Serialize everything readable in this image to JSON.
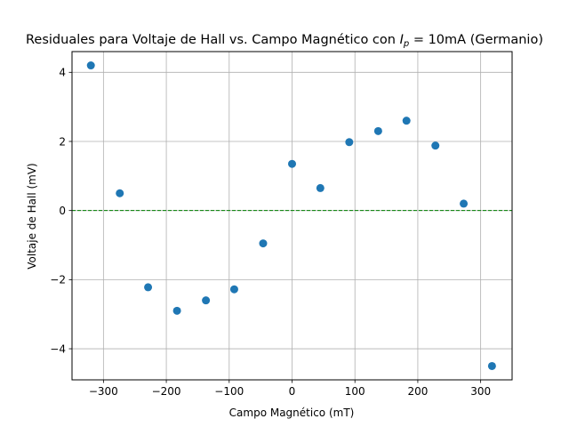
{
  "chart_data": {
    "type": "scatter",
    "title": "Residuales para Voltaje de Hall vs. Campo Magnético con ",
    "title_math_var": "I",
    "title_math_sub": "p",
    "title_math_rest": " = 10mA",
    "title_suffix": " (Germanio)",
    "xlabel": "Campo Magnético (mT)",
    "ylabel": "Voltaje de Hall (mV)",
    "xlim": [
      -350,
      350
    ],
    "ylim": [
      -4.9,
      4.6
    ],
    "xticks": [
      -300,
      -200,
      -100,
      0,
      100,
      200,
      300
    ],
    "yticks": [
      -4,
      -2,
      0,
      2,
      4
    ],
    "xtick_labels": [
      "−300",
      "−200",
      "−100",
      "0",
      "100",
      "200",
      "300"
    ],
    "ytick_labels": [
      "−4",
      "−2",
      "0",
      "2",
      "4"
    ],
    "grid": true,
    "reference_line": {
      "y": 0,
      "style": "dashed",
      "color": "#008000"
    },
    "marker_color": "#1f77b4",
    "x": [
      -320,
      -274,
      -229,
      -183,
      -137,
      -92,
      -46,
      0,
      45,
      91,
      137,
      182,
      228,
      273,
      318
    ],
    "y": [
      4.2,
      0.5,
      -2.22,
      -2.9,
      -2.6,
      -2.28,
      -0.95,
      1.35,
      0.65,
      1.98,
      2.3,
      2.6,
      1.88,
      0.2,
      -4.5
    ]
  }
}
